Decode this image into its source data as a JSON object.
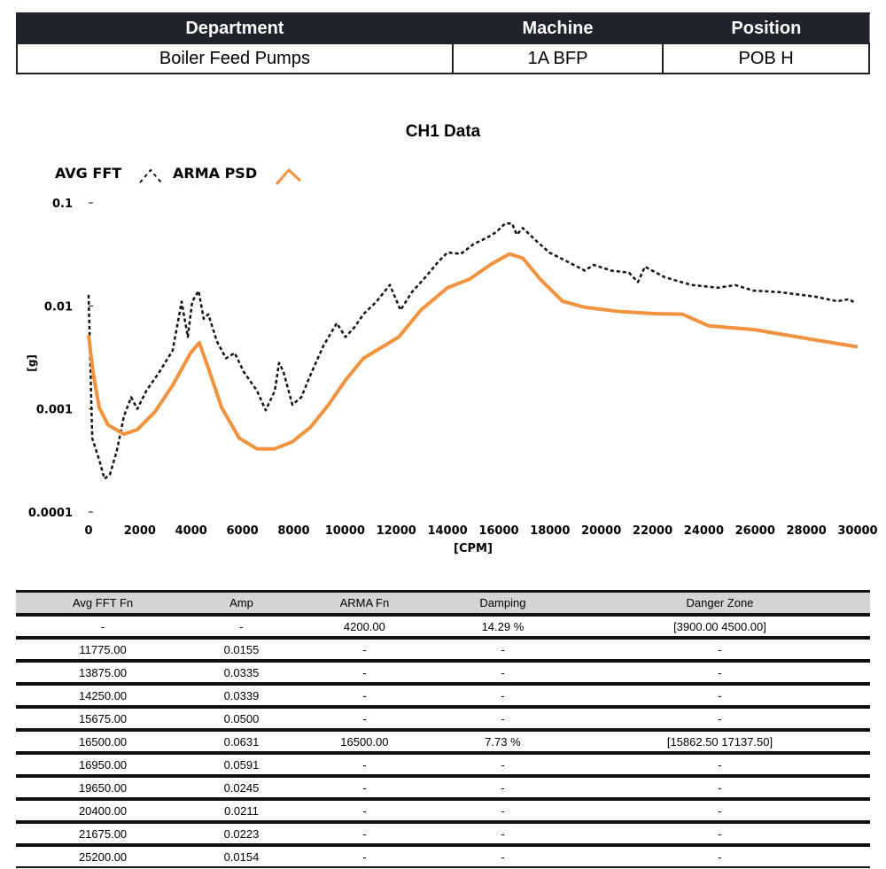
{
  "header": {
    "columns": [
      "Department",
      "Machine",
      "Position"
    ],
    "values": [
      "Boiler Feed Pumps",
      "1A BFP",
      "POB H"
    ]
  },
  "chart_data": {
    "type": "line",
    "title": "CH1 Data",
    "xlabel": "[CPM]",
    "ylabel": "[g]",
    "xlim": [
      0,
      30000
    ],
    "ylim": [
      0.0001,
      0.1
    ],
    "yscale": "log",
    "grid": false,
    "legend": "top-left",
    "x_ticks": [
      "0",
      "2000",
      "4000",
      "6000",
      "8000",
      "10000",
      "12000",
      "14000",
      "16000",
      "18000",
      "20000",
      "22000",
      "24000",
      "26000",
      "28000",
      "30000"
    ],
    "y_ticks": [
      "0.1",
      "0.01",
      "0.001",
      "0.0001"
    ],
    "series": [
      {
        "name": "AVG FFT",
        "color": "#111111",
        "style": "dashed",
        "x": [
          0,
          140,
          415,
          620,
          830,
          1100,
          1380,
          1660,
          1900,
          2250,
          2770,
          3280,
          3630,
          3870,
          4040,
          4290,
          4490,
          4670,
          5010,
          5360,
          5700,
          6050,
          6570,
          6910,
          7260,
          7430,
          7600,
          7950,
          8300,
          8640,
          9160,
          9680,
          10020,
          10370,
          10720,
          11230,
          11750,
          12170,
          12610,
          13140,
          13650,
          14000,
          14520,
          15030,
          15550,
          15900,
          16250,
          16520,
          16700,
          16940,
          17450,
          17970,
          18670,
          19360,
          19700,
          20390,
          21080,
          21430,
          21700,
          22470,
          23500,
          24540,
          25230,
          25930,
          26960,
          28340,
          29200,
          29660,
          29900
        ],
        "y": [
          0.0128,
          0.00052,
          0.00032,
          0.00021,
          0.00023,
          0.00039,
          0.00085,
          0.0013,
          0.001,
          0.0015,
          0.0023,
          0.0037,
          0.011,
          0.005,
          0.011,
          0.014,
          0.0075,
          0.0083,
          0.0045,
          0.0031,
          0.0035,
          0.0023,
          0.0015,
          0.00097,
          0.0015,
          0.0028,
          0.0023,
          0.0011,
          0.0013,
          0.0021,
          0.0041,
          0.0068,
          0.005,
          0.0062,
          0.0083,
          0.011,
          0.016,
          0.0091,
          0.0136,
          0.019,
          0.027,
          0.033,
          0.032,
          0.04,
          0.046,
          0.052,
          0.063,
          0.063,
          0.049,
          0.057,
          0.043,
          0.033,
          0.027,
          0.022,
          0.025,
          0.022,
          0.021,
          0.017,
          0.024,
          0.019,
          0.016,
          0.015,
          0.0159,
          0.0141,
          0.0136,
          0.0123,
          0.0111,
          0.0116,
          0.0107
        ]
      },
      {
        "name": "ARMA PSD",
        "color": "#f0923e",
        "style": "solid",
        "x": [
          0,
          170,
          415,
          760,
          1380,
          1900,
          2590,
          3280,
          3980,
          4320,
          4670,
          5190,
          5880,
          6570,
          7260,
          7950,
          8640,
          9330,
          10020,
          10720,
          12100,
          12960,
          14000,
          14860,
          15720,
          16420,
          16940,
          17630,
          18490,
          19360,
          20740,
          22120,
          23160,
          24200,
          25930,
          27650,
          30000
        ],
        "y": [
          0.0052,
          0.0023,
          0.00103,
          0.0007,
          0.00057,
          0.00063,
          0.00094,
          0.0017,
          0.0035,
          0.0044,
          0.0025,
          0.00103,
          0.00052,
          0.00041,
          0.00041,
          0.00048,
          0.00066,
          0.00107,
          0.0019,
          0.0031,
          0.005,
          0.0091,
          0.015,
          0.0182,
          0.0255,
          0.032,
          0.029,
          0.018,
          0.0111,
          0.0097,
          0.0088,
          0.0084,
          0.0083,
          0.0064,
          0.0059,
          0.005,
          0.004
        ]
      }
    ]
  },
  "results_table": {
    "columns": [
      "Avg FFT Fn",
      "Amp",
      "ARMA Fn",
      "Damping",
      "Danger Zone"
    ],
    "rows": [
      [
        "-",
        "-",
        "4200.00",
        "14.29 %",
        "[3900.00  4500.00]"
      ],
      [
        "11775.00",
        "0.0155",
        "-",
        "-",
        "-"
      ],
      [
        "13875.00",
        "0.0335",
        "-",
        "-",
        "-"
      ],
      [
        "14250.00",
        "0.0339",
        "-",
        "-",
        "-"
      ],
      [
        "15675.00",
        "0.0500",
        "-",
        "-",
        "-"
      ],
      [
        "16500.00",
        "0.0631",
        "16500.00",
        "7.73 %",
        "[15862.50  17137.50]"
      ],
      [
        "16950.00",
        "0.0591",
        "-",
        "-",
        "-"
      ],
      [
        "19650.00",
        "0.0245",
        "-",
        "-",
        "-"
      ],
      [
        "20400.00",
        "0.0211",
        "-",
        "-",
        "-"
      ],
      [
        "21675.00",
        "0.0223",
        "-",
        "-",
        "-"
      ],
      [
        "25200.00",
        "0.0154",
        "-",
        "-",
        "-"
      ]
    ]
  }
}
